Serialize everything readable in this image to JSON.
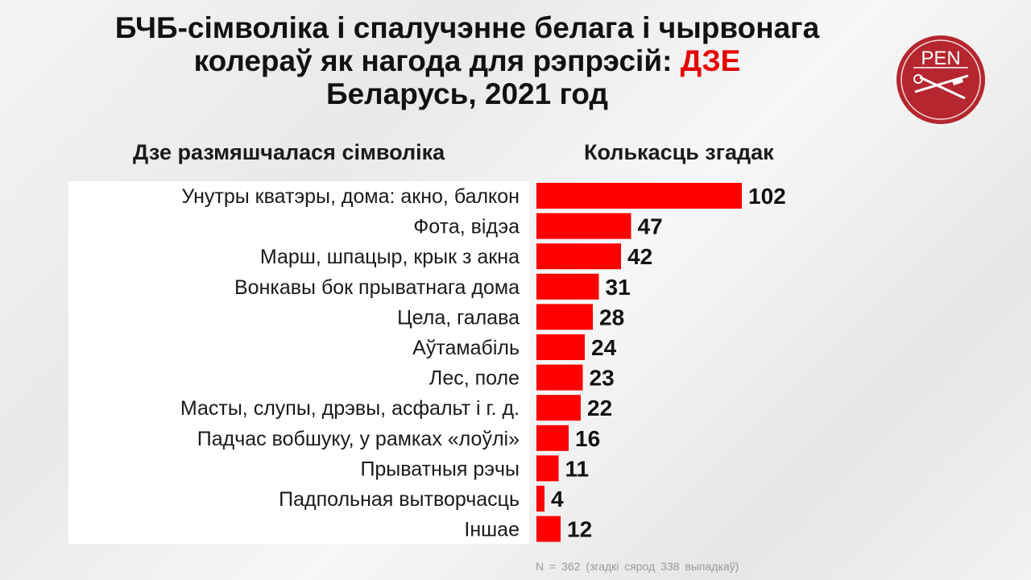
{
  "title": {
    "line1": "БЧБ-сімволіка і спалучэнне белага і чырвонага",
    "line2_prefix": "колераў як нагода для рэпрэсій: ",
    "line2_highlight": "ДЗЕ",
    "line3": "Беларусь, 2021 год"
  },
  "logo": {
    "text": "PEN"
  },
  "columns": {
    "left_header": "Дзе размяшчалася сімволіка",
    "right_header": "Колькасць згадак"
  },
  "footnote": "N = 362 (згадкі сярод 338 выпадкаў)",
  "colors": {
    "bar": "#ff0000",
    "highlight": "#e60000",
    "logo_bg": "#b5262e"
  },
  "chart_data": {
    "type": "bar",
    "orientation": "horizontal",
    "categories": [
      "Унутры кватэры, дома: акно, балкон",
      "Фота, відэа",
      "Марш, шпацыр, крык з акна",
      "Вонкавы бок прыватнага дома",
      "Цела, галава",
      "Аўтамабіль",
      "Лес, поле",
      "Масты, слупы, дрэвы, асфальт і г. д.",
      "Падчас вобшуку, у рамках «лоўлі»",
      "Прыватныя рэчы",
      "Падпольная вытворчасць",
      "Іншае"
    ],
    "values": [
      102,
      47,
      42,
      31,
      28,
      24,
      23,
      22,
      16,
      11,
      4,
      12
    ],
    "data_labels": true,
    "grid": false,
    "legend": "none"
  }
}
